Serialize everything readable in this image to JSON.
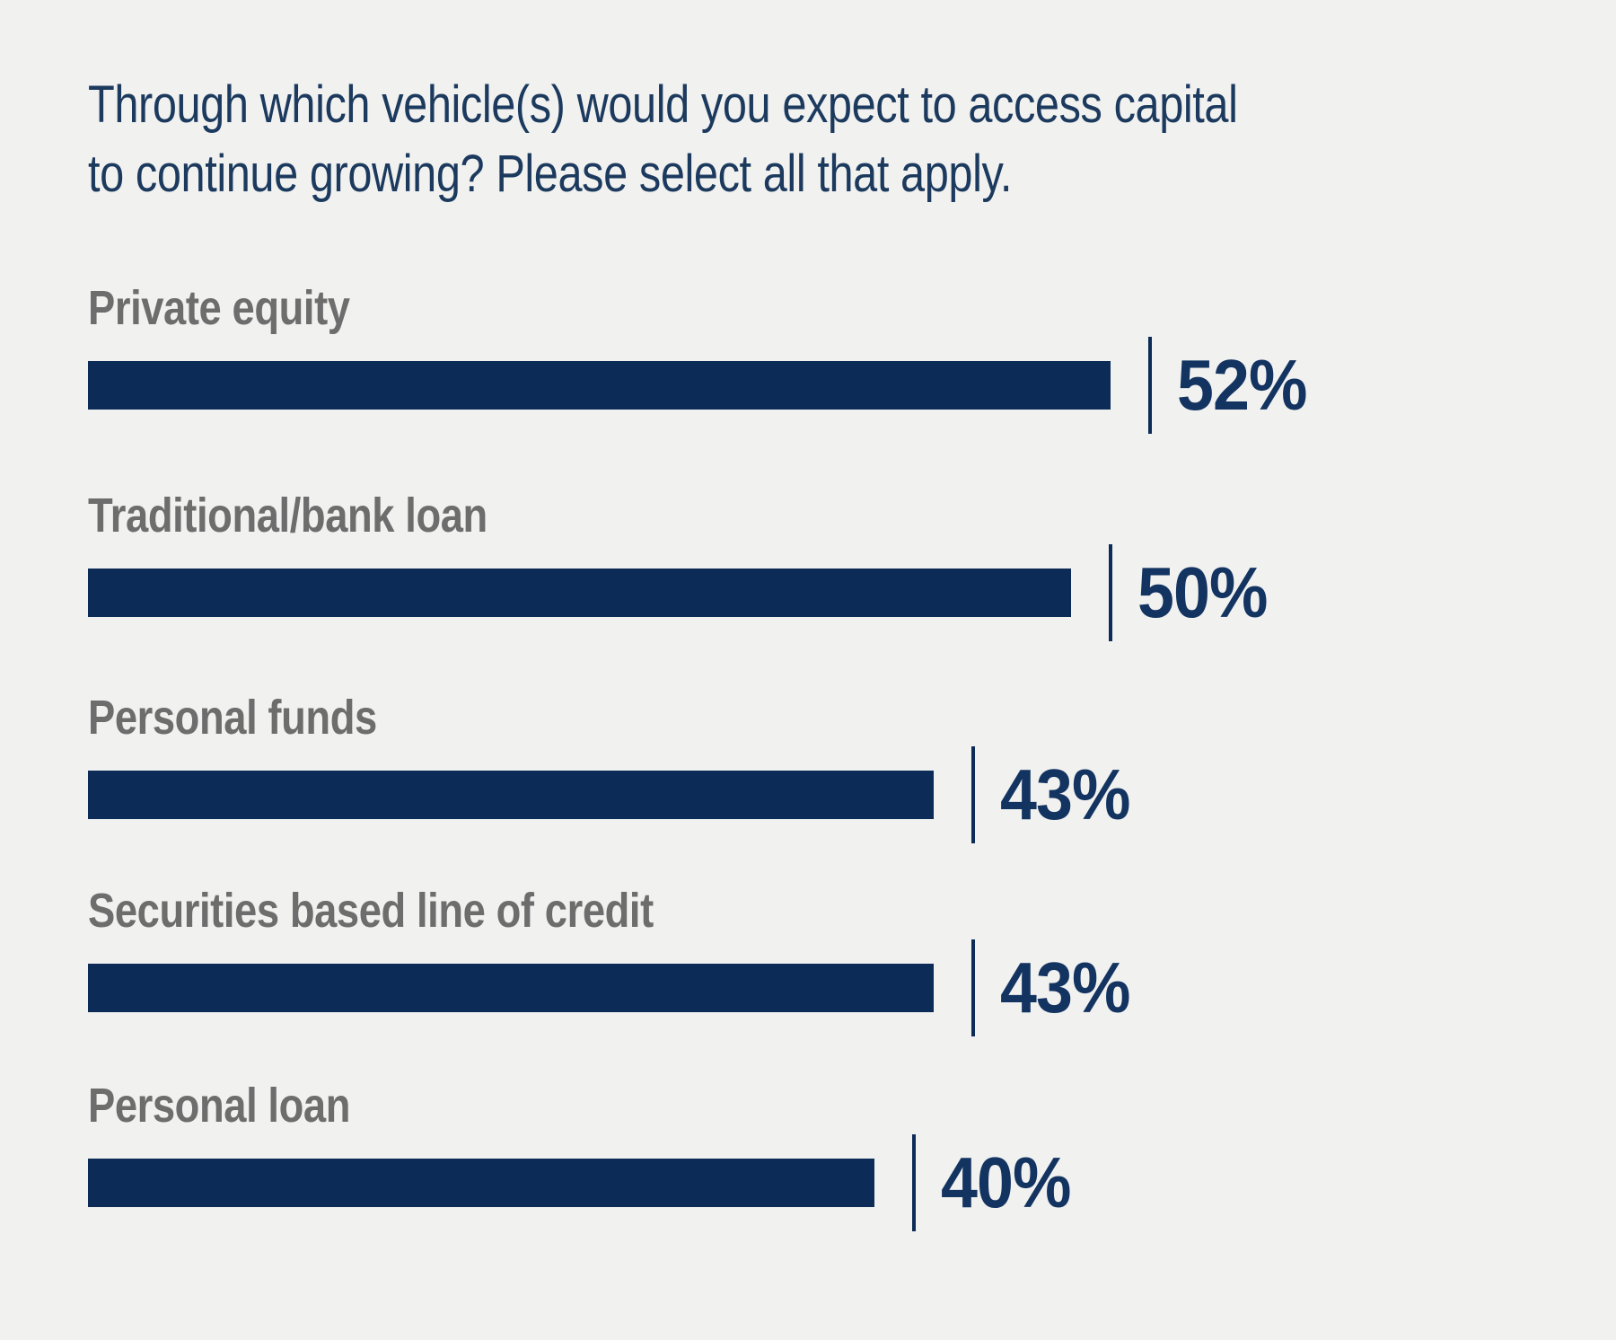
{
  "background_color": "#f1f1f0",
  "accent_navy": "#0c2c57",
  "title": {
    "line1": "Through which vehicle(s) would you expect to access capital",
    "line2": "to continue growing? Please select all that apply."
  },
  "chart_data": {
    "type": "bar",
    "orientation": "horizontal",
    "title": "Through which vehicle(s) would you expect to access capital to continue growing? Please select all that apply.",
    "categories": [
      "Private equity",
      "Traditional/bank loan",
      "Personal funds",
      "Securities based line of credit",
      "Personal loan"
    ],
    "values": [
      52,
      50,
      43,
      43,
      40
    ],
    "value_labels": [
      "52%",
      "50%",
      "43%",
      "43%",
      "40%"
    ],
    "unit": "%",
    "xlim": [
      0,
      57
    ],
    "grid": false,
    "legend": false,
    "bar_color": "#0c2c57",
    "category_label_color": "#6d6d6d",
    "value_label_color": "#133360",
    "title_color": "#1c3a5e"
  }
}
